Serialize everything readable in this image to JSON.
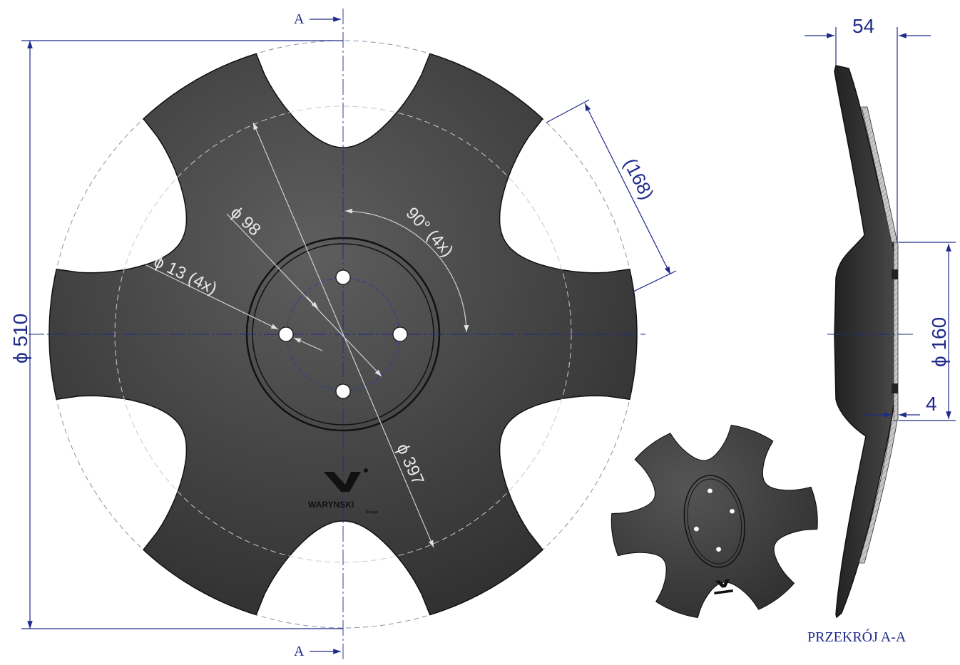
{
  "section_marks": {
    "top": "A",
    "bottom": "A"
  },
  "section_title": "PRZEKRÓJ A-A",
  "dimensions": {
    "outer_diameter": "ϕ 510",
    "pitch_circle": "ϕ 397",
    "bolt_circle": "ϕ 98",
    "holes": "ϕ 13  (4x)",
    "angle": "90°  (4x)",
    "notch_width": "(168)",
    "depth": "54",
    "hub_diameter": "ϕ 160",
    "thickness": "4"
  },
  "logo": {
    "name": "WARYNSKI",
    "tagline": "Design"
  },
  "colors": {
    "disc_dark": "#3a3a3a",
    "disc_light": "#5c5c5c",
    "dimension": "#1f2a8a",
    "hole": "#ffffff"
  }
}
